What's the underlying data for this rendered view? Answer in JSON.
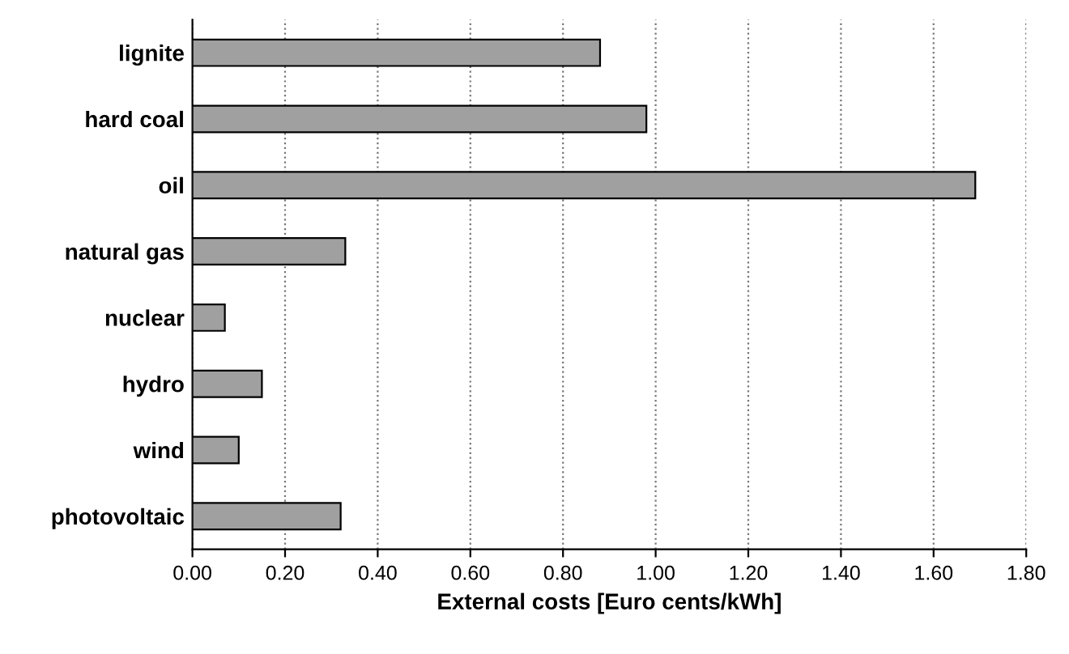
{
  "chart_data": {
    "type": "bar",
    "orientation": "horizontal",
    "xlabel": "External costs [Euro cents/kWh]",
    "categories": [
      "lignite",
      "hard coal",
      "oil",
      "natural gas",
      "nuclear",
      "hydro",
      "wind",
      "photovoltaic"
    ],
    "values": [
      0.88,
      0.98,
      1.69,
      0.33,
      0.07,
      0.15,
      0.1,
      0.32
    ],
    "color": "#a0a0a0",
    "xlim": [
      0,
      1.8
    ],
    "xticks": [
      {
        "value": 0,
        "label": "0.00"
      },
      {
        "value": 0.2,
        "label": "0.20"
      },
      {
        "value": 0.4,
        "label": "0.40"
      },
      {
        "value": 0.6,
        "label": "0.60"
      },
      {
        "value": 0.8,
        "label": "0.80"
      },
      {
        "value": 1.0,
        "label": "1.00"
      },
      {
        "value": 1.2,
        "label": "1.20"
      },
      {
        "value": 1.4,
        "label": "1.40"
      },
      {
        "value": 1.6,
        "label": "1.60"
      },
      {
        "value": 1.8,
        "label": "1.80"
      }
    ],
    "grid": "x",
    "legend": false
  }
}
